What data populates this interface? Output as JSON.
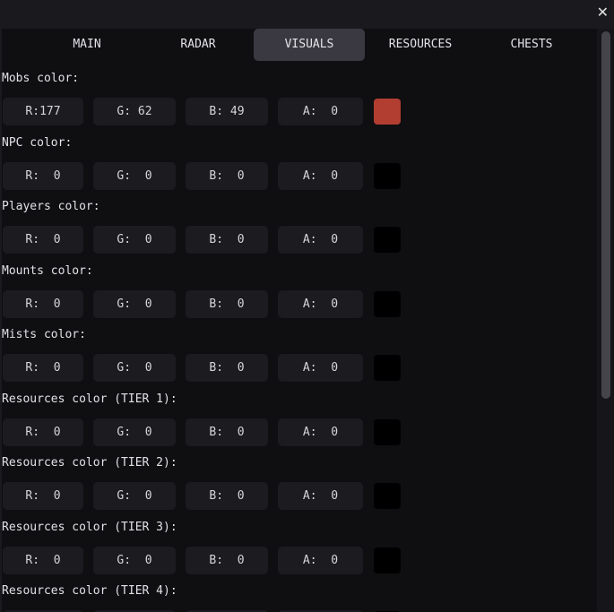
{
  "window": {
    "close_icon": "close-icon"
  },
  "tabs": [
    {
      "label": "MAIN",
      "active": false
    },
    {
      "label": "RADAR",
      "active": false
    },
    {
      "label": "VISUALS",
      "active": true
    },
    {
      "label": "RESOURCES",
      "active": false
    },
    {
      "label": "CHESTS",
      "active": false
    }
  ],
  "color_settings": [
    {
      "label": "Mobs color:",
      "r": 177,
      "g": 62,
      "b": 49,
      "a": 0,
      "swatch": "#b13e31"
    },
    {
      "label": "NPC color:",
      "r": 0,
      "g": 0,
      "b": 0,
      "a": 0,
      "swatch": "#000000"
    },
    {
      "label": "Players color:",
      "r": 0,
      "g": 0,
      "b": 0,
      "a": 0,
      "swatch": "#000000"
    },
    {
      "label": "Mounts color:",
      "r": 0,
      "g": 0,
      "b": 0,
      "a": 0,
      "swatch": "#000000"
    },
    {
      "label": "Mists color:",
      "r": 0,
      "g": 0,
      "b": 0,
      "a": 0,
      "swatch": "#000000"
    },
    {
      "label": "Resources color (TIER 1):",
      "r": 0,
      "g": 0,
      "b": 0,
      "a": 0,
      "swatch": "#000000"
    },
    {
      "label": "Resources color (TIER 2):",
      "r": 0,
      "g": 0,
      "b": 0,
      "a": 0,
      "swatch": "#000000"
    },
    {
      "label": "Resources color (TIER 3):",
      "r": 0,
      "g": 0,
      "b": 0,
      "a": 0,
      "swatch": "#000000"
    },
    {
      "label": "Resources color (TIER 4):",
      "r": 0,
      "g": 0,
      "b": 0,
      "a": 0,
      "swatch": "#000000"
    }
  ],
  "channel_labels": {
    "r": "R:",
    "g": "G:",
    "b": "B:",
    "a": "A:"
  }
}
